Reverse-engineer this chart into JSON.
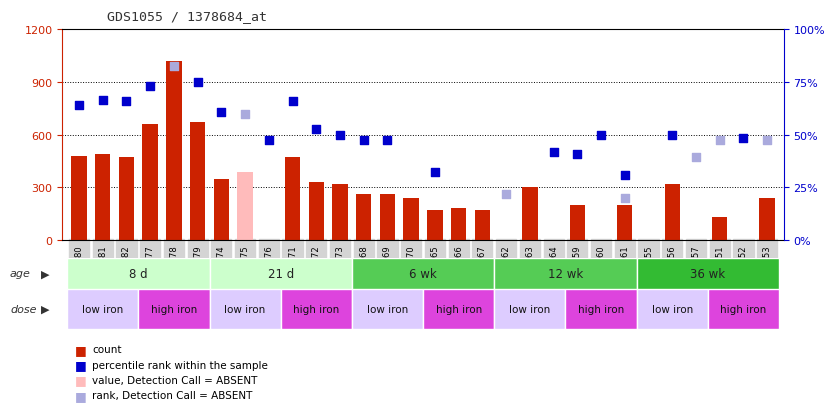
{
  "title": "GDS1055 / 1378684_at",
  "samples": [
    "GSM33580",
    "GSM33581",
    "GSM33582",
    "GSM33577",
    "GSM33578",
    "GSM33579",
    "GSM33574",
    "GSM33575",
    "GSM33576",
    "GSM33571",
    "GSM33572",
    "GSM33573",
    "GSM33568",
    "GSM33569",
    "GSM33570",
    "GSM33565",
    "GSM33566",
    "GSM33567",
    "GSM33562",
    "GSM33563",
    "GSM33564",
    "GSM33559",
    "GSM33560",
    "GSM33561",
    "GSM33555",
    "GSM33556",
    "GSM33557",
    "GSM33551",
    "GSM33552",
    "GSM33553"
  ],
  "count_values": [
    480,
    490,
    470,
    660,
    1020,
    670,
    350,
    null,
    null,
    470,
    330,
    320,
    260,
    260,
    240,
    170,
    180,
    170,
    null,
    300,
    null,
    200,
    null,
    200,
    null,
    320,
    null,
    130,
    null,
    240
  ],
  "count_absent_values": [
    null,
    null,
    null,
    null,
    null,
    null,
    null,
    390,
    null,
    null,
    null,
    null,
    null,
    null,
    null,
    null,
    null,
    null,
    null,
    null,
    null,
    null,
    null,
    null,
    null,
    null,
    null,
    null,
    null,
    null
  ],
  "rank_values": [
    770,
    800,
    790,
    880,
    null,
    900,
    730,
    null,
    570,
    790,
    630,
    600,
    570,
    570,
    null,
    390,
    null,
    null,
    null,
    null,
    500,
    490,
    600,
    370,
    null,
    600,
    null,
    null,
    580,
    null
  ],
  "rank_absent_values": [
    null,
    null,
    null,
    null,
    990,
    null,
    null,
    720,
    null,
    null,
    null,
    null,
    null,
    null,
    null,
    null,
    null,
    null,
    260,
    null,
    null,
    null,
    null,
    240,
    null,
    null,
    470,
    570,
    null,
    570
  ],
  "absent_bar": [
    false,
    false,
    false,
    false,
    false,
    false,
    false,
    true,
    false,
    false,
    false,
    false,
    false,
    false,
    false,
    false,
    false,
    false,
    true,
    false,
    true,
    false,
    true,
    false,
    true,
    false,
    true,
    false,
    true,
    false
  ],
  "age_groups": [
    {
      "label": "8 d",
      "start": 0,
      "end": 6,
      "color": "#ccffcc"
    },
    {
      "label": "21 d",
      "start": 6,
      "end": 12,
      "color": "#ccffcc"
    },
    {
      "label": "6 wk",
      "start": 12,
      "end": 18,
      "color": "#55cc55"
    },
    {
      "label": "12 wk",
      "start": 18,
      "end": 24,
      "color": "#55cc55"
    },
    {
      "label": "36 wk",
      "start": 24,
      "end": 30,
      "color": "#33bb33"
    }
  ],
  "dose_groups": [
    {
      "label": "low iron",
      "start": 0,
      "end": 3,
      "color": "#ddccff"
    },
    {
      "label": "high iron",
      "start": 3,
      "end": 6,
      "color": "#dd44dd"
    },
    {
      "label": "low iron",
      "start": 6,
      "end": 9,
      "color": "#ddccff"
    },
    {
      "label": "high iron",
      "start": 9,
      "end": 12,
      "color": "#dd44dd"
    },
    {
      "label": "low iron",
      "start": 12,
      "end": 15,
      "color": "#ddccff"
    },
    {
      "label": "high iron",
      "start": 15,
      "end": 18,
      "color": "#dd44dd"
    },
    {
      "label": "low iron",
      "start": 18,
      "end": 21,
      "color": "#ddccff"
    },
    {
      "label": "high iron",
      "start": 21,
      "end": 24,
      "color": "#dd44dd"
    },
    {
      "label": "low iron",
      "start": 24,
      "end": 27,
      "color": "#ddccff"
    },
    {
      "label": "high iron",
      "start": 27,
      "end": 30,
      "color": "#dd44dd"
    }
  ],
  "ylim_left": [
    0,
    1200
  ],
  "yticks_left": [
    0,
    300,
    600,
    900,
    1200
  ],
  "yticks_right": [
    0,
    25,
    50,
    75,
    100
  ],
  "bar_color": "#cc2200",
  "bar_absent_color": "#ffbbbb",
  "rank_color": "#0000cc",
  "rank_absent_color": "#aaaadd",
  "left_axis_color": "#cc2200",
  "right_axis_color": "#0000cc",
  "xtick_bg": "#d4d4d4"
}
